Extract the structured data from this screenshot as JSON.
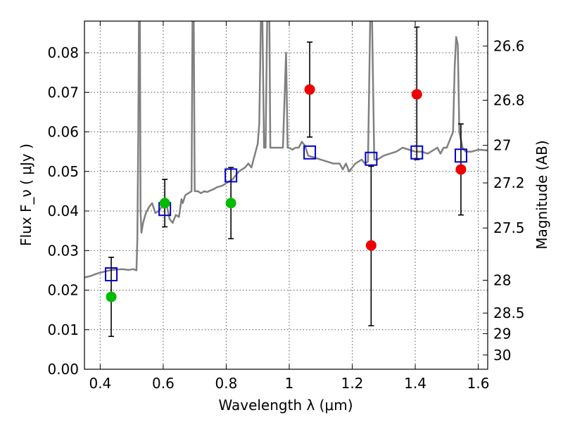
{
  "chart_data": {
    "type": "scatter",
    "xlabel": "Wavelength  λ (μm)",
    "ylabel_left": "Flux  F_ν  ( μJy )",
    "ylabel_right": "Magnitude (AB)",
    "xlim": [
      0.35,
      1.63
    ],
    "ylim": [
      0.0,
      0.088
    ],
    "grid": true,
    "x_ticks": [
      0.4,
      0.6,
      0.8,
      1.0,
      1.2,
      1.4,
      1.6
    ],
    "x_tick_labels": [
      "0.4",
      "0.6",
      "0.8",
      "1",
      "1.2",
      "1.4",
      "1.6"
    ],
    "y_ticks": [
      0.0,
      0.01,
      0.02,
      0.03,
      0.04,
      0.05,
      0.06,
      0.07,
      0.08
    ],
    "y_tick_labels": [
      "0.00",
      "0.01",
      "0.02",
      "0.03",
      "0.04",
      "0.05",
      "0.06",
      "0.07",
      "0.08"
    ],
    "right_ticks": [
      {
        "mag": 26.6,
        "label": "26.6"
      },
      {
        "mag": 26.8,
        "label": "26.8"
      },
      {
        "mag": 27.0,
        "label": "27"
      },
      {
        "mag": 27.2,
        "label": "27.2"
      },
      {
        "mag": 27.5,
        "label": "27.5"
      },
      {
        "mag": 28.0,
        "label": "28"
      },
      {
        "mag": 28.5,
        "label": "28.5"
      },
      {
        "mag": 29.0,
        "label": "29"
      },
      {
        "mag": 30.0,
        "label": "30"
      }
    ],
    "right_ticks_display_flux": [
      0.0817,
      0.068,
      0.0566,
      0.0471,
      0.0357,
      0.0225,
      0.0142,
      0.009,
      0.0036
    ],
    "colors": {
      "model_line": "#808080",
      "model_marker": "#0000cc",
      "detection_green": "#00bb00",
      "detection_red": "#ee0000",
      "errorbar": "#000000",
      "grid": "#555555"
    },
    "observed": [
      {
        "x": 0.435,
        "y": 0.0183,
        "yerr_low": 0.01,
        "yerr_high": 0.01,
        "color": "green"
      },
      {
        "x": 0.605,
        "y": 0.042,
        "yerr_low": 0.006,
        "yerr_high": 0.006,
        "color": "green"
      },
      {
        "x": 0.815,
        "y": 0.042,
        "yerr_low": 0.009,
        "yerr_high": 0.009,
        "color": "green"
      },
      {
        "x": 1.065,
        "y": 0.0707,
        "yerr_low": 0.012,
        "yerr_high": 0.012,
        "color": "red"
      },
      {
        "x": 1.26,
        "y": 0.0313,
        "yerr_low": 0.0203,
        "yerr_high": 0.02,
        "color": "red"
      },
      {
        "x": 1.405,
        "y": 0.0695,
        "yerr_low": 0.0165,
        "yerr_high": 0.017,
        "color": "red"
      },
      {
        "x": 1.545,
        "y": 0.0505,
        "yerr_low": 0.0115,
        "yerr_high": 0.0115,
        "color": "red"
      }
    ],
    "model_points": [
      {
        "x": 0.435,
        "y": 0.024
      },
      {
        "x": 0.605,
        "y": 0.0405
      },
      {
        "x": 0.815,
        "y": 0.049
      },
      {
        "x": 1.065,
        "y": 0.0548
      },
      {
        "x": 1.26,
        "y": 0.0532
      },
      {
        "x": 1.405,
        "y": 0.0548
      },
      {
        "x": 1.545,
        "y": 0.054
      }
    ],
    "model_spectrum": [
      [
        0.35,
        0.0232
      ],
      [
        0.37,
        0.0236
      ],
      [
        0.39,
        0.0242
      ],
      [
        0.41,
        0.0246
      ],
      [
        0.43,
        0.025
      ],
      [
        0.45,
        0.0252
      ],
      [
        0.47,
        0.0253
      ],
      [
        0.49,
        0.0251
      ],
      [
        0.505,
        0.0253
      ],
      [
        0.515,
        0.025
      ],
      [
        0.518,
        0.033
      ],
      [
        0.521,
        0.06
      ],
      [
        0.523,
        0.088
      ],
      [
        0.526,
        0.088
      ],
      [
        0.528,
        0.04
      ],
      [
        0.531,
        0.0345
      ],
      [
        0.536,
        0.037
      ],
      [
        0.545,
        0.0395
      ],
      [
        0.555,
        0.041
      ],
      [
        0.565,
        0.042
      ],
      [
        0.575,
        0.0395
      ],
      [
        0.585,
        0.04
      ],
      [
        0.595,
        0.041
      ],
      [
        0.61,
        0.042
      ],
      [
        0.62,
        0.038
      ],
      [
        0.63,
        0.037
      ],
      [
        0.64,
        0.039
      ],
      [
        0.65,
        0.0385
      ],
      [
        0.658,
        0.043
      ],
      [
        0.662,
        0.042
      ],
      [
        0.67,
        0.044
      ],
      [
        0.68,
        0.0445
      ],
      [
        0.69,
        0.045
      ],
      [
        0.693,
        0.088
      ],
      [
        0.697,
        0.088
      ],
      [
        0.7,
        0.045
      ],
      [
        0.71,
        0.045
      ],
      [
        0.72,
        0.0445
      ],
      [
        0.73,
        0.045
      ],
      [
        0.74,
        0.0448
      ],
      [
        0.75,
        0.0452
      ],
      [
        0.76,
        0.0455
      ],
      [
        0.77,
        0.046
      ],
      [
        0.78,
        0.0462
      ],
      [
        0.79,
        0.0465
      ],
      [
        0.8,
        0.047
      ],
      [
        0.81,
        0.0475
      ],
      [
        0.82,
        0.048
      ],
      [
        0.83,
        0.049
      ],
      [
        0.84,
        0.05
      ],
      [
        0.85,
        0.0505
      ],
      [
        0.86,
        0.051
      ],
      [
        0.87,
        0.052
      ],
      [
        0.88,
        0.051
      ],
      [
        0.89,
        0.054
      ],
      [
        0.9,
        0.057
      ],
      [
        0.905,
        0.062
      ],
      [
        0.91,
        0.088
      ],
      [
        0.915,
        0.088
      ],
      [
        0.92,
        0.056
      ],
      [
        0.925,
        0.056
      ],
      [
        0.93,
        0.088
      ],
      [
        0.937,
        0.088
      ],
      [
        0.94,
        0.056
      ],
      [
        0.95,
        0.056
      ],
      [
        0.96,
        0.056
      ],
      [
        0.97,
        0.056
      ],
      [
        0.98,
        0.056
      ],
      [
        0.99,
        0.08
      ],
      [
        0.995,
        0.056
      ],
      [
        1.0,
        0.056
      ],
      [
        1.01,
        0.0555
      ],
      [
        1.02,
        0.056
      ],
      [
        1.03,
        0.056
      ],
      [
        1.04,
        0.0575
      ],
      [
        1.05,
        0.0565
      ],
      [
        1.06,
        0.054
      ],
      [
        1.08,
        0.0535
      ],
      [
        1.1,
        0.053
      ],
      [
        1.12,
        0.0525
      ],
      [
        1.14,
        0.052
      ],
      [
        1.16,
        0.052
      ],
      [
        1.17,
        0.0505
      ],
      [
        1.18,
        0.052
      ],
      [
        1.19,
        0.05
      ],
      [
        1.2,
        0.051
      ],
      [
        1.21,
        0.052
      ],
      [
        1.22,
        0.0525
      ],
      [
        1.23,
        0.053
      ],
      [
        1.24,
        0.052
      ],
      [
        1.25,
        0.0525
      ],
      [
        1.257,
        0.088
      ],
      [
        1.263,
        0.088
      ],
      [
        1.27,
        0.053
      ],
      [
        1.28,
        0.053
      ],
      [
        1.3,
        0.054
      ],
      [
        1.32,
        0.0545
      ],
      [
        1.34,
        0.055
      ],
      [
        1.36,
        0.056
      ],
      [
        1.38,
        0.0555
      ],
      [
        1.4,
        0.055
      ],
      [
        1.42,
        0.055
      ],
      [
        1.44,
        0.0545
      ],
      [
        1.45,
        0.055
      ],
      [
        1.46,
        0.0555
      ],
      [
        1.47,
        0.056
      ],
      [
        1.48,
        0.0545
      ],
      [
        1.49,
        0.056
      ],
      [
        1.5,
        0.056
      ],
      [
        1.51,
        0.058
      ],
      [
        1.52,
        0.06
      ],
      [
        1.525,
        0.076
      ],
      [
        1.53,
        0.084
      ],
      [
        1.535,
        0.082
      ],
      [
        1.54,
        0.06
      ],
      [
        1.55,
        0.056
      ],
      [
        1.56,
        0.055
      ],
      [
        1.58,
        0.055
      ],
      [
        1.6,
        0.0555
      ],
      [
        1.63,
        0.0553
      ]
    ]
  }
}
